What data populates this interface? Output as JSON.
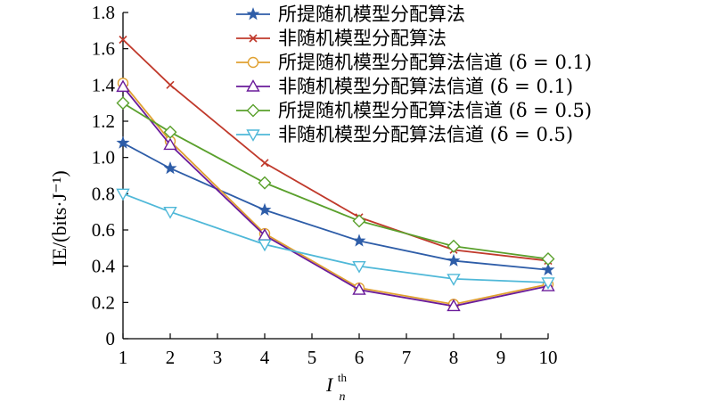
{
  "chart_data": {
    "type": "line",
    "x": [
      1,
      2,
      4,
      6,
      8,
      10
    ],
    "xticks": [
      1,
      2,
      3,
      4,
      5,
      6,
      7,
      8,
      9,
      10
    ],
    "yticks": [
      0,
      0.2,
      0.4,
      0.6,
      0.8,
      1.0,
      1.2,
      1.4,
      1.6,
      1.8
    ],
    "ytick_labels": [
      "0",
      "0.2",
      "0.4",
      "0.6",
      "0.8",
      "1.0",
      "1.2",
      "1.4",
      "1.6",
      "1.8"
    ],
    "xlim": [
      1,
      10
    ],
    "ylim": [
      0,
      1.8
    ],
    "ylabel": "IE/(bits·J⁻¹)",
    "xlabel": {
      "base": "I",
      "sub": "n",
      "sup": "th"
    },
    "grid": false,
    "legend_position": "top-right",
    "series": [
      {
        "name": "所提随机模型分配算法",
        "color": "#2e5da8",
        "marker": "star",
        "values": [
          1.08,
          0.94,
          0.71,
          0.54,
          0.43,
          0.38
        ]
      },
      {
        "name": "非随机模型分配算法",
        "color": "#c0392b",
        "marker": "x",
        "values": [
          1.65,
          1.4,
          0.97,
          0.67,
          0.49,
          0.43
        ]
      },
      {
        "name": "所提随机模型分配算法信道 (δ = 0.1)",
        "color": "#e0a030",
        "marker": "circle",
        "values": [
          1.41,
          1.09,
          0.58,
          0.28,
          0.19,
          0.3
        ]
      },
      {
        "name": "非随机模型分配算法信道 (δ = 0.1)",
        "color": "#6a1b9a",
        "marker": "triangle-up",
        "values": [
          1.39,
          1.07,
          0.57,
          0.27,
          0.18,
          0.29
        ]
      },
      {
        "name": "所提随机模型分配算法信道 (δ = 0.5)",
        "color": "#5aa02c",
        "marker": "diamond",
        "values": [
          1.3,
          1.14,
          0.86,
          0.65,
          0.51,
          0.44
        ]
      },
      {
        "name": "非随机模型分配算法信道 (δ = 0.5)",
        "color": "#4fb8d8",
        "marker": "triangle-down",
        "values": [
          0.8,
          0.7,
          0.52,
          0.4,
          0.33,
          0.31
        ]
      }
    ]
  }
}
